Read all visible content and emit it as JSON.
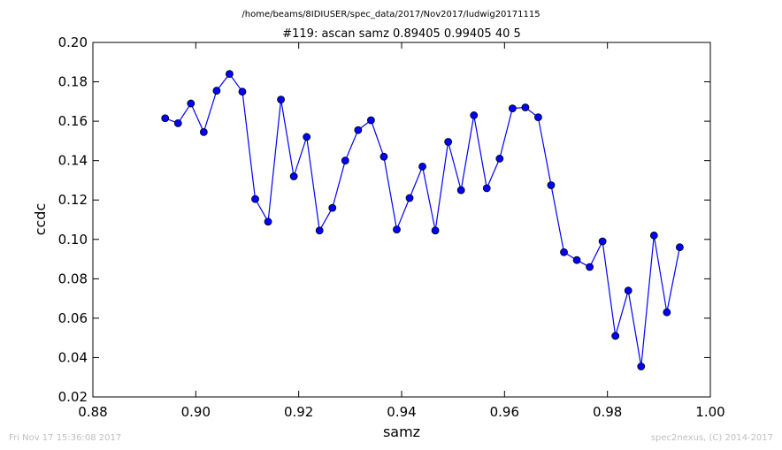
{
  "header": {
    "path": "/home/beams/8IDIUSER/spec_data/2017/Nov2017/ludwig20171115"
  },
  "footer": {
    "timestamp": "Fri Nov 17 15:36:08 2017",
    "credit": "spec2nexus, (C) 2014-2017"
  },
  "chart_data": {
    "type": "line",
    "title": "#119: ascan  samz 0.89405 0.99405  40 5",
    "xlabel": "samz",
    "ylabel": "ccdc",
    "xlim": [
      0.88,
      1.0
    ],
    "ylim": [
      0.02,
      0.2
    ],
    "grid": false,
    "xticks": [
      "0.88",
      "0.90",
      "0.92",
      "0.94",
      "0.96",
      "0.98",
      "1.00"
    ],
    "yticks": [
      "0.02",
      "0.04",
      "0.06",
      "0.08",
      "0.10",
      "0.12",
      "0.14",
      "0.16",
      "0.18",
      "0.20"
    ],
    "line_color": "#0000ff",
    "marker": "circle",
    "x": [
      0.89405,
      0.89655,
      0.89905,
      0.90155,
      0.90405,
      0.90655,
      0.90905,
      0.91155,
      0.91405,
      0.91655,
      0.91905,
      0.92155,
      0.92405,
      0.92655,
      0.92905,
      0.93155,
      0.93405,
      0.93655,
      0.93905,
      0.94155,
      0.94405,
      0.94655,
      0.94905,
      0.95155,
      0.95405,
      0.95655,
      0.95905,
      0.96155,
      0.96405,
      0.96655,
      0.96905,
      0.97155,
      0.97405,
      0.97655,
      0.97905,
      0.98155,
      0.98405,
      0.98655,
      0.98905,
      0.99155,
      0.99405
    ],
    "y": [
      0.1615,
      0.159,
      0.169,
      0.1545,
      0.1755,
      0.184,
      0.175,
      0.1205,
      0.109,
      0.171,
      0.132,
      0.152,
      0.1045,
      0.116,
      0.14,
      0.1555,
      0.1605,
      0.142,
      0.105,
      0.121,
      0.137,
      0.1045,
      0.1495,
      0.125,
      0.163,
      0.126,
      0.141,
      0.1665,
      0.167,
      0.162,
      0.1275,
      0.0935,
      0.0895,
      0.086,
      0.099,
      0.051,
      0.074,
      0.0355,
      0.102,
      0.063,
      0.096
    ]
  }
}
